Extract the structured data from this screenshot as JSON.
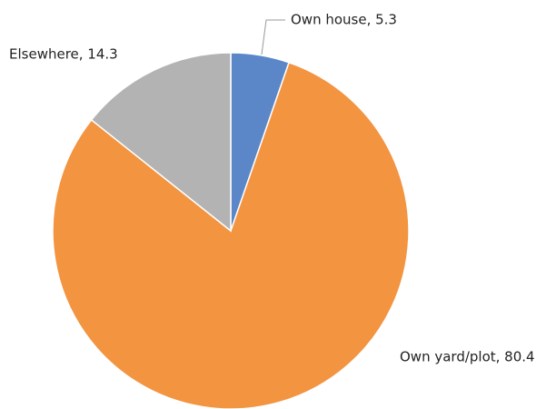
{
  "chart_data": {
    "type": "pie",
    "categories": [
      "Own house",
      "Own yard/plot",
      "Elsewhere"
    ],
    "values": [
      5.3,
      80.4,
      14.3
    ],
    "value_labels": [
      "Own house, 5.3",
      "Own yard/plot, 80.4",
      "Elsewhere, 14.3"
    ],
    "colors": [
      "#5b87c8",
      "#f39441",
      "#b3b3b3"
    ]
  }
}
